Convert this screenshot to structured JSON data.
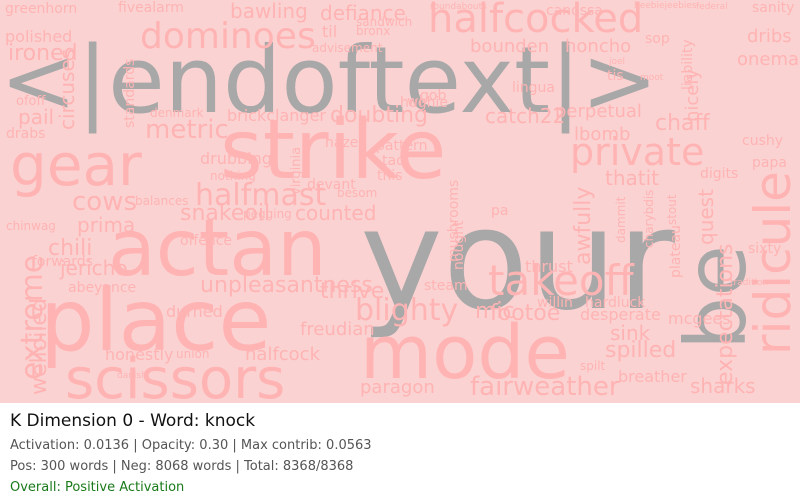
{
  "title": "K Dimension 0 - Word: knock",
  "stats_line1": "Activation: 0.0136 | Opacity: 0.30 | Max contrib: 0.0563",
  "stats_line2": "Pos: 300 words | Neg: 8068 words | Total: 8368/8368",
  "overall": "Overall: Positive Activation",
  "colors": {
    "cloud_bg": "#fbd2d2",
    "word_pink": "#ffb3b3",
    "word_gray": "#a8a8a8",
    "positive": "#1a7a1a"
  },
  "words": [
    {
      "text": "your",
      "color": "gray"
    },
    {
      "text": "<|endoftext|>",
      "color": "gray"
    },
    {
      "text": "be",
      "color": "gray"
    },
    {
      "text": "strike",
      "color": "pink"
    },
    {
      "text": "actan",
      "color": "pink"
    },
    {
      "text": "place",
      "color": "pink"
    },
    {
      "text": "mode",
      "color": "pink"
    },
    {
      "text": "gear",
      "color": "pink"
    },
    {
      "text": "ridicule",
      "color": "pink"
    },
    {
      "text": "scissors",
      "color": "pink"
    },
    {
      "text": "halfcocked",
      "color": "pink"
    },
    {
      "text": "takeoff",
      "color": "pink"
    },
    {
      "text": "dominoes",
      "color": "pink"
    },
    {
      "text": "private",
      "color": "pink"
    },
    {
      "text": "extreme",
      "color": "pink"
    },
    {
      "text": "blighty",
      "color": "pink"
    },
    {
      "text": "halfmast",
      "color": "pink"
    },
    {
      "text": "fairweather",
      "color": "pink"
    },
    {
      "text": "expectations",
      "color": "pink"
    },
    {
      "text": "unpleasantness",
      "color": "pink"
    },
    {
      "text": "metric",
      "color": "pink"
    },
    {
      "text": "cows",
      "color": "pink"
    },
    {
      "text": "circuses",
      "color": "pink"
    },
    {
      "text": "doubting",
      "color": "pink"
    },
    {
      "text": "footoe",
      "color": "pink"
    },
    {
      "text": "chaff",
      "color": "pink"
    },
    {
      "text": "thrive",
      "color": "pink"
    },
    {
      "text": "catch22",
      "color": "pink"
    },
    {
      "text": "welloiled",
      "color": "pink"
    },
    {
      "text": "jericho",
      "color": "pink"
    },
    {
      "text": "snakeoil",
      "color": "pink"
    },
    {
      "text": "awfully",
      "color": "pink"
    },
    {
      "text": "spilled",
      "color": "pink"
    },
    {
      "text": "chili",
      "color": "pink"
    },
    {
      "text": "prima",
      "color": "pink"
    },
    {
      "text": "paragon",
      "color": "pink"
    },
    {
      "text": "ironed",
      "color": "pink"
    },
    {
      "text": "lbomb",
      "color": "pink"
    },
    {
      "text": "thatit",
      "color": "pink"
    },
    {
      "text": "sharks",
      "color": "pink"
    },
    {
      "text": "pail",
      "color": "pink"
    },
    {
      "text": "counted",
      "color": "pink"
    },
    {
      "text": "perpetual",
      "color": "pink"
    },
    {
      "text": "bounden",
      "color": "pink"
    },
    {
      "text": "brickclanger",
      "color": "pink"
    },
    {
      "text": "oneman",
      "color": "pink"
    },
    {
      "text": "dribs",
      "color": "pink"
    },
    {
      "text": "honcho",
      "color": "pink"
    },
    {
      "text": "nicely",
      "color": "pink"
    },
    {
      "text": "honestly",
      "color": "pink"
    },
    {
      "text": "standards",
      "color": "pink"
    },
    {
      "text": "mic",
      "color": "pink"
    },
    {
      "text": "freudian",
      "color": "pink"
    },
    {
      "text": "defiance",
      "color": "pink"
    },
    {
      "text": "bawling",
      "color": "pink"
    },
    {
      "text": "quest",
      "color": "pink"
    },
    {
      "text": "sink",
      "color": "pink"
    },
    {
      "text": "durned",
      "color": "pink"
    },
    {
      "text": "halfcock",
      "color": "pink"
    },
    {
      "text": "breather",
      "color": "pink"
    },
    {
      "text": "desperate",
      "color": "pink"
    },
    {
      "text": "mcgees",
      "color": "pink"
    },
    {
      "text": "thrust",
      "color": "pink"
    },
    {
      "text": "drubbing",
      "color": "pink"
    },
    {
      "text": "polished",
      "color": "pink"
    },
    {
      "text": "greenhorn",
      "color": "pink"
    },
    {
      "text": "fivealarm",
      "color": "pink"
    },
    {
      "text": "canossa",
      "color": "pink"
    },
    {
      "text": "sanity",
      "color": "pink"
    },
    {
      "text": "forwards",
      "color": "pink"
    },
    {
      "text": "abeyance",
      "color": "pink"
    },
    {
      "text": "offence",
      "color": "pink"
    },
    {
      "text": "devant",
      "color": "pink"
    },
    {
      "text": "haze",
      "color": "pink"
    },
    {
      "text": "pattern",
      "color": "pink"
    },
    {
      "text": "tad",
      "color": "pink"
    },
    {
      "text": "digits",
      "color": "pink"
    },
    {
      "text": "papa",
      "color": "pink"
    },
    {
      "text": "cushy",
      "color": "pink"
    },
    {
      "text": "sixty",
      "color": "pink"
    },
    {
      "text": "plateau",
      "color": "pink"
    },
    {
      "text": "lingua",
      "color": "pink"
    },
    {
      "text": "hughie",
      "color": "pink"
    },
    {
      "text": "gob",
      "color": "pink"
    },
    {
      "text": "steam",
      "color": "pink"
    },
    {
      "text": "willin",
      "color": "pink"
    },
    {
      "text": "hardluck",
      "color": "pink"
    },
    {
      "text": "til",
      "color": "pink"
    },
    {
      "text": "bronx",
      "color": "pink"
    },
    {
      "text": "advisement",
      "color": "pink"
    },
    {
      "text": "sandwich",
      "color": "pink"
    },
    {
      "text": "drabs",
      "color": "pink"
    },
    {
      "text": "ofoff",
      "color": "pink"
    },
    {
      "text": "nothing",
      "color": "pink"
    },
    {
      "text": "balances",
      "color": "pink"
    },
    {
      "text": "chinwag",
      "color": "pink"
    },
    {
      "text": "pegging",
      "color": "pink"
    },
    {
      "text": "union",
      "color": "pink"
    },
    {
      "text": "nought",
      "color": "pink"
    },
    {
      "text": "mushrooms",
      "color": "pink"
    },
    {
      "text": "virginia",
      "color": "pink"
    },
    {
      "text": "denmark",
      "color": "pink"
    },
    {
      "text": "spilt",
      "color": "pink"
    },
    {
      "text": "dammit",
      "color": "pink"
    },
    {
      "text": "charybdis",
      "color": "pink"
    },
    {
      "text": "stout",
      "color": "pink"
    },
    {
      "text": "liability",
      "color": "pink"
    },
    {
      "text": "sop",
      "color": "pink"
    },
    {
      "text": "tis",
      "color": "pink"
    },
    {
      "text": "this",
      "color": "pink"
    },
    {
      "text": "pa",
      "color": "pink"
    },
    {
      "text": "wi",
      "color": "pink"
    },
    {
      "text": "roundabouts",
      "color": "pink"
    },
    {
      "text": "federal",
      "color": "pink"
    },
    {
      "text": "heebiejeebies",
      "color": "pink"
    },
    {
      "text": "danish",
      "color": "pink"
    },
    {
      "text": "tradition",
      "color": "pink"
    },
    {
      "text": "besom",
      "color": "pink"
    },
    {
      "text": "joel",
      "color": "pink"
    },
    {
      "text": "moot",
      "color": "pink"
    }
  ]
}
